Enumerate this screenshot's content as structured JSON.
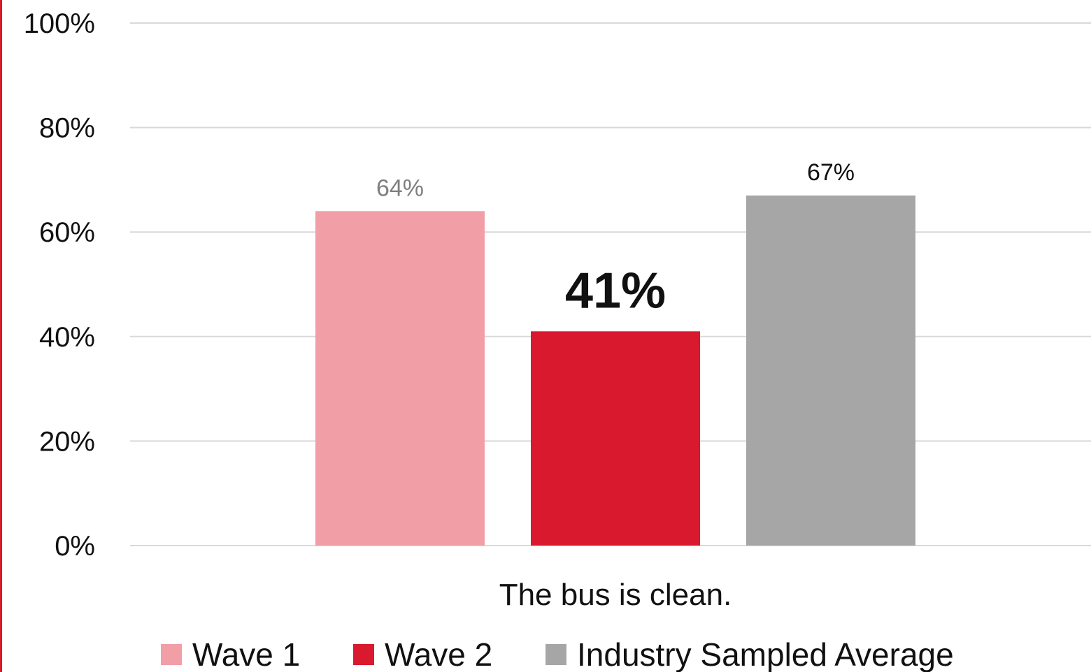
{
  "chart_data": {
    "type": "bar",
    "categories": [
      "The bus is clean."
    ],
    "series": [
      {
        "name": "Wave 1",
        "values": [
          64
        ],
        "label": "64%",
        "color": "#f29ea7"
      },
      {
        "name": "Wave 2",
        "values": [
          41
        ],
        "label": "41%",
        "color": "#d9192e"
      },
      {
        "name": "Industry Sampled Average",
        "values": [
          67
        ],
        "label": "67%",
        "color": "#a6a6a6"
      }
    ],
    "yticks": [
      "0%",
      "20%",
      "40%",
      "60%",
      "80%",
      "100%"
    ],
    "ylim": [
      0,
      100
    ],
    "grid": true,
    "legend": "bottom"
  }
}
